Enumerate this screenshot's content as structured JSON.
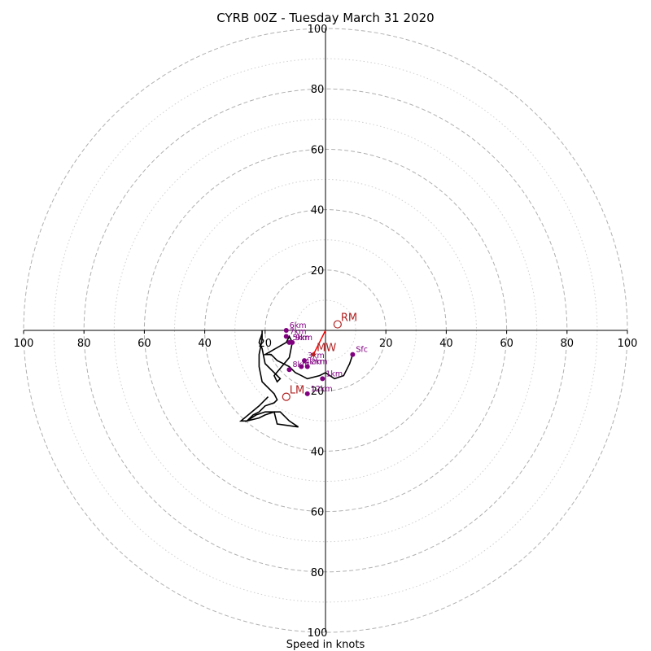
{
  "chart_data": {
    "type": "scatter",
    "title": "CYRB 00Z - Tuesday March 31 2020",
    "xlabel": "Speed in knots",
    "axis_range": [
      -100,
      100
    ],
    "rings": {
      "major": [
        20,
        40,
        60,
        80,
        100
      ],
      "minor": [
        10,
        30,
        50,
        70,
        90
      ]
    },
    "x_tick_labels": [
      "100",
      "80",
      "60",
      "40",
      "20",
      "20",
      "40",
      "60",
      "80",
      "100"
    ],
    "y_tick_labels": [
      "100",
      "80",
      "60",
      "40",
      "20",
      "20",
      "40",
      "60",
      "80",
      "100"
    ],
    "hodograph_trace": [
      [
        9,
        -8
      ],
      [
        8,
        -11
      ],
      [
        7,
        -13
      ],
      [
        6,
        -15
      ],
      [
        3,
        -16
      ],
      [
        0,
        -14
      ],
      [
        -2,
        -15
      ],
      [
        -6,
        -16
      ],
      [
        -8,
        -15
      ],
      [
        -10,
        -14
      ],
      [
        -12,
        -12
      ],
      [
        -14,
        -11
      ],
      [
        -16,
        -10
      ],
      [
        -18,
        -8
      ],
      [
        -20,
        -8
      ],
      [
        -13,
        -4
      ],
      [
        -12,
        -2
      ],
      [
        -11,
        -4
      ],
      [
        -12,
        -9
      ],
      [
        -17,
        -15
      ],
      [
        -16,
        -17
      ],
      [
        -15,
        -16
      ],
      [
        -20,
        -11
      ],
      [
        -21,
        -6
      ],
      [
        -22,
        -4
      ],
      [
        -21,
        -1
      ],
      [
        -21,
        0
      ],
      [
        -21,
        -3
      ],
      [
        -22,
        -8
      ],
      [
        -22,
        -12
      ],
      [
        -21,
        -17
      ],
      [
        -18,
        -20
      ],
      [
        -17,
        -21
      ],
      [
        -16,
        -23
      ],
      [
        -17,
        -24
      ],
      [
        -20,
        -25
      ],
      [
        -22,
        -27
      ],
      [
        -24,
        -28
      ],
      [
        -26,
        -30
      ],
      [
        -22,
        -29
      ],
      [
        -20,
        -28
      ],
      [
        -17,
        -27
      ],
      [
        -16,
        -31
      ],
      [
        -9,
        -32
      ],
      [
        -12,
        -30
      ],
      [
        -15,
        -27
      ],
      [
        -20,
        -27
      ],
      [
        -23,
        -28
      ],
      [
        -26,
        -30
      ],
      [
        -28,
        -30
      ],
      [
        -22,
        -25
      ],
      [
        -19,
        -22
      ]
    ],
    "height_markers": [
      {
        "label": "Sfc",
        "u": 9,
        "v": -8
      },
      {
        "label": "1km",
        "u": -1,
        "v": -16
      },
      {
        "label": "2km",
        "u": -6,
        "v": -12
      },
      {
        "label": "3km",
        "u": -7,
        "v": -10
      },
      {
        "label": "4km",
        "u": -8,
        "v": -12
      },
      {
        "label": "5km",
        "u": -12,
        "v": -4
      },
      {
        "label": "6km",
        "u": -13,
        "v": 0
      },
      {
        "label": "7km",
        "u": -13,
        "v": -2
      },
      {
        "label": "8km",
        "u": -12,
        "v": -13
      },
      {
        "label": "9km",
        "u": -11,
        "v": -4
      },
      {
        "label": "12km",
        "u": -6,
        "v": -21
      }
    ],
    "storm_motion": [
      {
        "label": "RM",
        "u": 4,
        "v": 2
      },
      {
        "label": "LM",
        "u": -13,
        "v": -22
      },
      {
        "label": "MW",
        "u": -4,
        "v": -8
      }
    ],
    "shear_vector": {
      "from": [
        -4,
        -8
      ],
      "to": [
        0,
        0
      ]
    },
    "colors": {
      "trace": "#000000",
      "height_marker": "#800080",
      "storm_motion": "#b22222",
      "shear_vector": "#ff0000",
      "ring": "#b0b0b0",
      "axis": "#000000"
    }
  }
}
